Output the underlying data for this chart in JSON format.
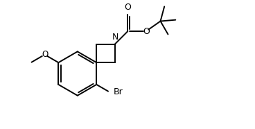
{
  "bg_color": "#ffffff",
  "line_color": "#000000",
  "line_width": 1.4,
  "font_size": 8.5,
  "figsize": [
    3.68,
    1.86
  ],
  "dpi": 100,
  "xlim": [
    0,
    10.0
  ],
  "ylim": [
    0,
    5.2
  ]
}
